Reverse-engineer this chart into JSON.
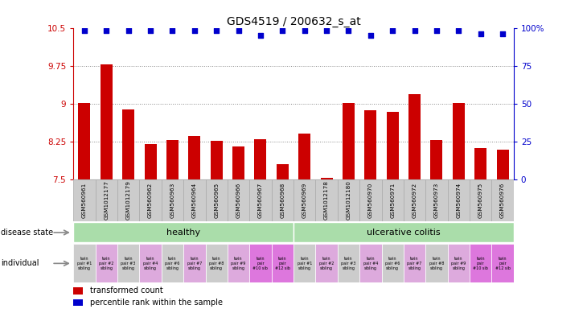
{
  "title": "GDS4519 / 200632_s_at",
  "samples": [
    "GSM560961",
    "GSM1012177",
    "GSM1012179",
    "GSM560962",
    "GSM560963",
    "GSM560964",
    "GSM560965",
    "GSM560966",
    "GSM560967",
    "GSM560968",
    "GSM560969",
    "GSM1012178",
    "GSM1012180",
    "GSM560970",
    "GSM560971",
    "GSM560972",
    "GSM560973",
    "GSM560974",
    "GSM560975",
    "GSM560976"
  ],
  "bar_values": [
    9.01,
    9.78,
    8.89,
    8.19,
    8.28,
    8.35,
    8.26,
    8.15,
    8.3,
    7.8,
    8.4,
    7.52,
    9.01,
    8.87,
    8.84,
    9.18,
    8.28,
    9.01,
    8.12,
    8.08
  ],
  "dot_values_pct": [
    98,
    98,
    98,
    98,
    98,
    98,
    98,
    98,
    95,
    98,
    98,
    98,
    98,
    95,
    98,
    98,
    98,
    98,
    96,
    96
  ],
  "ylim_left": [
    7.5,
    10.5
  ],
  "ylim_right": [
    0,
    100
  ],
  "yticks_left": [
    7.5,
    8.25,
    9.0,
    9.75,
    10.5
  ],
  "ytick_labels_left": [
    "7.5",
    "8.25",
    "9",
    "9.75",
    "10.5"
  ],
  "yticks_right": [
    0,
    25,
    50,
    75,
    100
  ],
  "ytick_labels_right": [
    "0",
    "25",
    "50",
    "75",
    "100%"
  ],
  "bar_color": "#cc0000",
  "dot_color": "#0000cc",
  "disease_state_healthy_color": "#aaddaa",
  "disease_state_uc_color": "#aaddaa",
  "disease_state_healthy_label": "healthy",
  "disease_state_uc_label": "ulcerative colitis",
  "individual_labels": [
    "twin\npair #1\nsibling",
    "twin\npair #2\nsibling",
    "twin\npair #3\nsibling",
    "twin\npair #4\nsibling",
    "twin\npair #6\nsibling",
    "twin\npair #7\nsibling",
    "twin\npair #8\nsibling",
    "twin\npair #9\nsibling",
    "twin\npair\n#10 sib",
    "twin\npair\n#12 sib",
    "twin\npair #1\nsibling",
    "twin\npair #2\nsibling",
    "twin\npair #3\nsibling",
    "twin\npair #4\nsibling",
    "twin\npair #6\nsibling",
    "twin\npair #7\nsibling",
    "twin\npair #8\nsibling",
    "twin\npair #9\nsibling",
    "twin\npair\n#10 sib",
    "twin\npair\n#12 sib"
  ],
  "individual_colors": [
    "#cccccc",
    "#ddaadd",
    "#cccccc",
    "#ddaadd",
    "#cccccc",
    "#ddaadd",
    "#cccccc",
    "#ddaadd",
    "#dd77dd",
    "#dd77dd",
    "#cccccc",
    "#ddaadd",
    "#cccccc",
    "#ddaadd",
    "#cccccc",
    "#ddaadd",
    "#cccccc",
    "#ddaadd",
    "#dd77dd",
    "#dd77dd"
  ],
  "legend_bar_label": "transformed count",
  "legend_dot_label": "percentile rank within the sample",
  "background_color": "#ffffff",
  "xtick_cell_color": "#cccccc",
  "xtick_border_color": "#aaaaaa"
}
